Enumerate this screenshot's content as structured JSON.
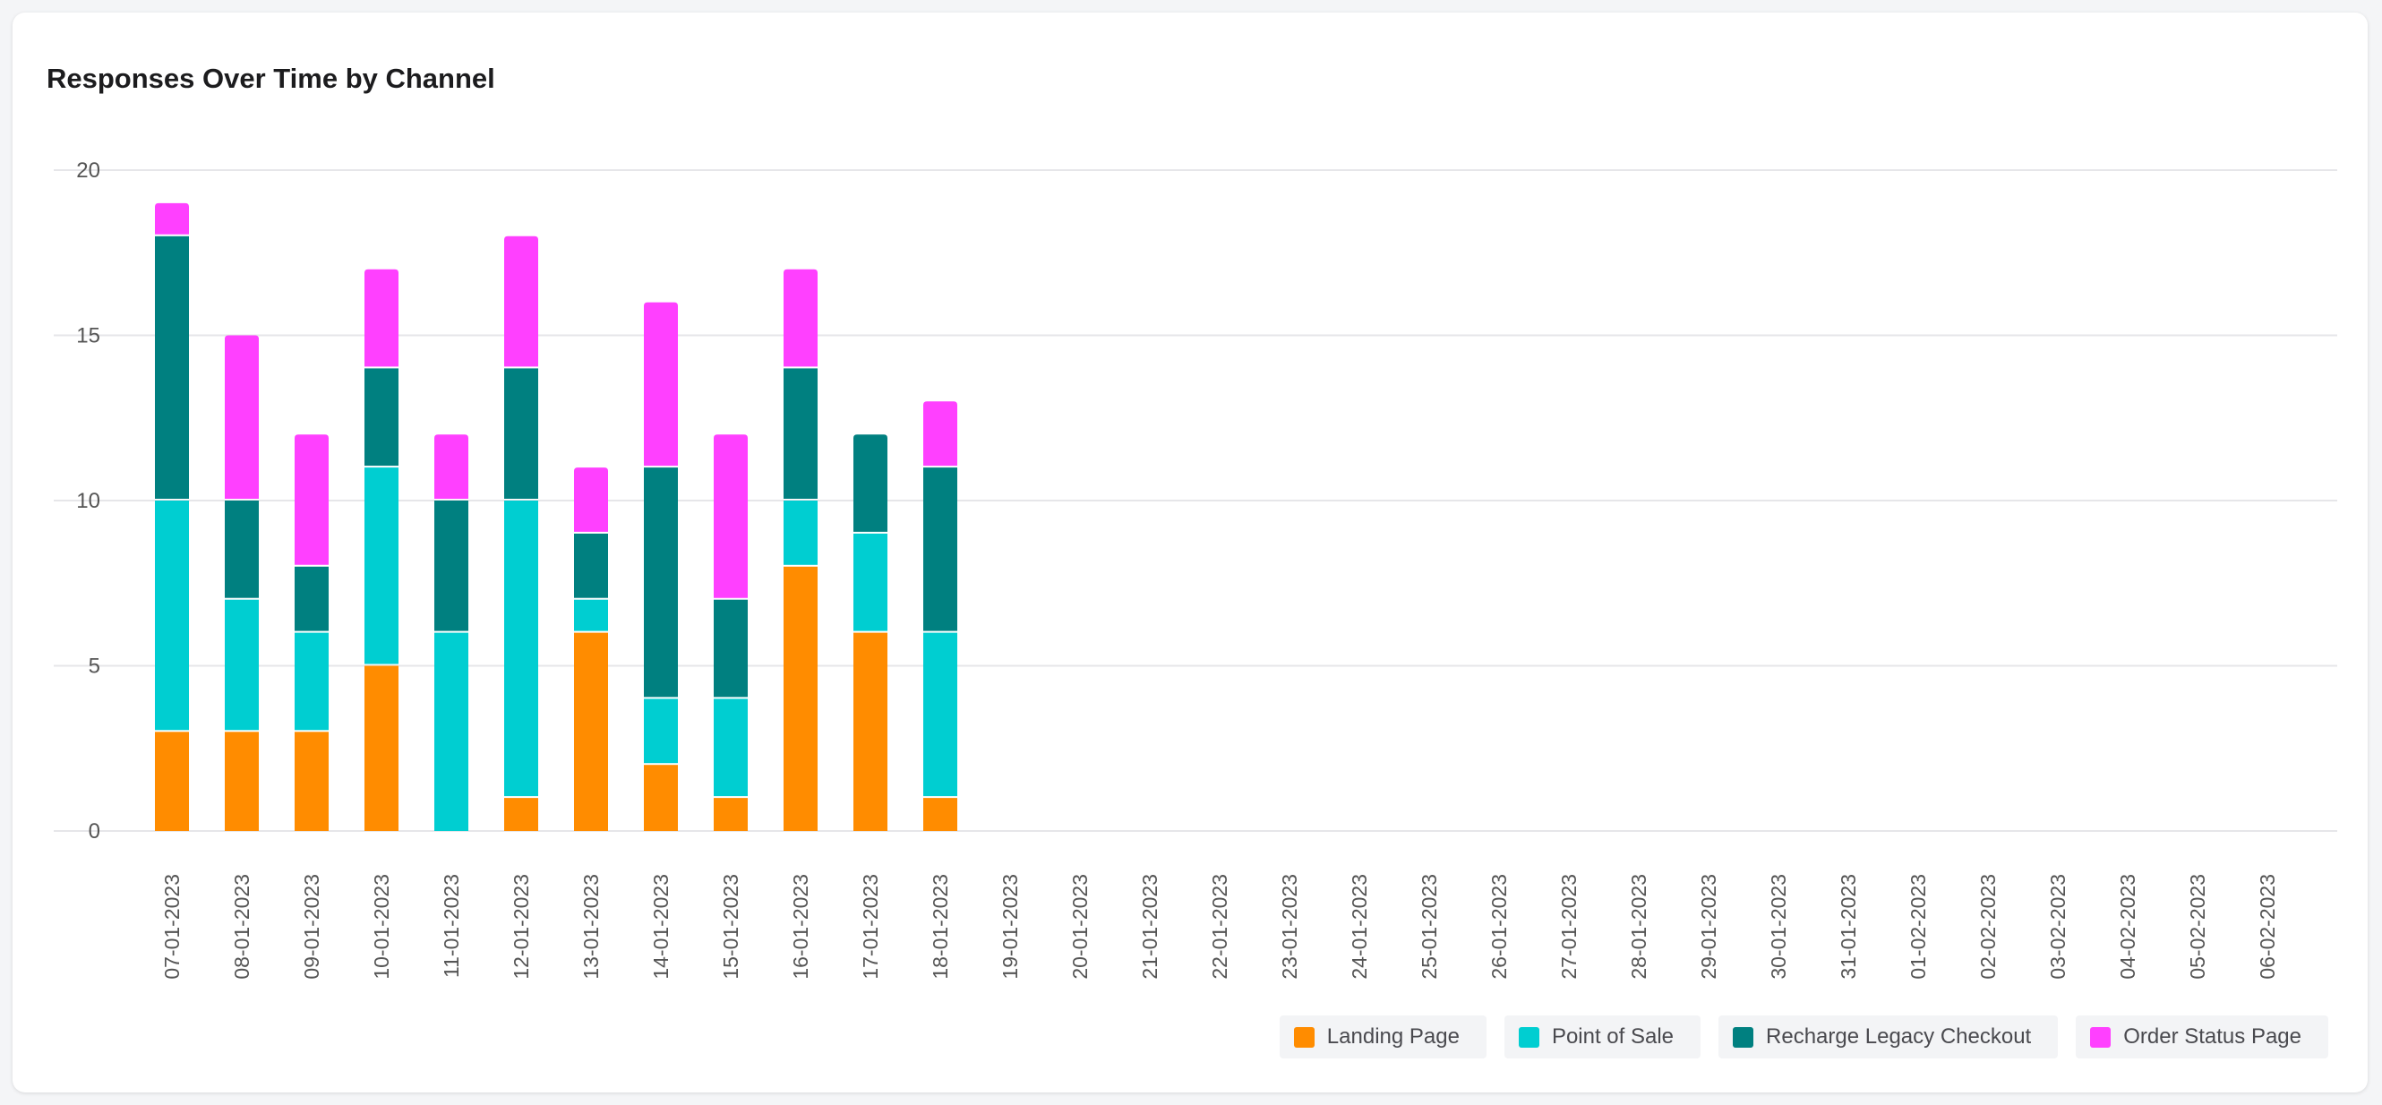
{
  "card": {
    "title": "Responses Over Time by Channel"
  },
  "chart_data": {
    "type": "bar",
    "stacked": true,
    "title": "Responses Over Time by Channel",
    "xlabel": "",
    "ylabel": "",
    "ylim": [
      0,
      20
    ],
    "yticks": [
      0,
      5,
      10,
      15,
      20
    ],
    "grid": true,
    "legend_position": "bottom-right",
    "categories": [
      "07-01-2023",
      "08-01-2023",
      "09-01-2023",
      "10-01-2023",
      "11-01-2023",
      "12-01-2023",
      "13-01-2023",
      "14-01-2023",
      "15-01-2023",
      "16-01-2023",
      "17-01-2023",
      "18-01-2023",
      "19-01-2023",
      "20-01-2023",
      "21-01-2023",
      "22-01-2023",
      "23-01-2023",
      "24-01-2023",
      "25-01-2023",
      "26-01-2023",
      "27-01-2023",
      "28-01-2023",
      "29-01-2023",
      "30-01-2023",
      "31-01-2023",
      "01-02-2023",
      "02-02-2023",
      "03-02-2023",
      "04-02-2023",
      "05-02-2023",
      "06-02-2023"
    ],
    "series": [
      {
        "name": "Landing Page",
        "color": "#ff8c00",
        "values": [
          3,
          3,
          3,
          5,
          0,
          1,
          6,
          2,
          1,
          8,
          6,
          1,
          0,
          0,
          0,
          0,
          0,
          0,
          0,
          0,
          0,
          0,
          0,
          0,
          0,
          0,
          0,
          0,
          0,
          0,
          0
        ]
      },
      {
        "name": "Point of Sale",
        "color": "#00ced1",
        "values": [
          7,
          4,
          3,
          6,
          6,
          9,
          1,
          2,
          3,
          2,
          3,
          5,
          0,
          0,
          0,
          0,
          0,
          0,
          0,
          0,
          0,
          0,
          0,
          0,
          0,
          0,
          0,
          0,
          0,
          0,
          0
        ]
      },
      {
        "name": "Recharge Legacy Checkout",
        "color": "#008080",
        "values": [
          8,
          3,
          2,
          3,
          4,
          4,
          2,
          7,
          3,
          4,
          3,
          5,
          0,
          0,
          0,
          0,
          0,
          0,
          0,
          0,
          0,
          0,
          0,
          0,
          0,
          0,
          0,
          0,
          0,
          0,
          0
        ]
      },
      {
        "name": "Order Status Page",
        "color": "#ff40ff",
        "values": [
          1,
          5,
          4,
          3,
          2,
          4,
          2,
          5,
          5,
          3,
          0,
          2,
          0,
          0,
          0,
          0,
          0,
          0,
          0,
          0,
          0,
          0,
          0,
          0,
          0,
          0,
          0,
          0,
          0,
          0,
          0
        ]
      }
    ]
  }
}
